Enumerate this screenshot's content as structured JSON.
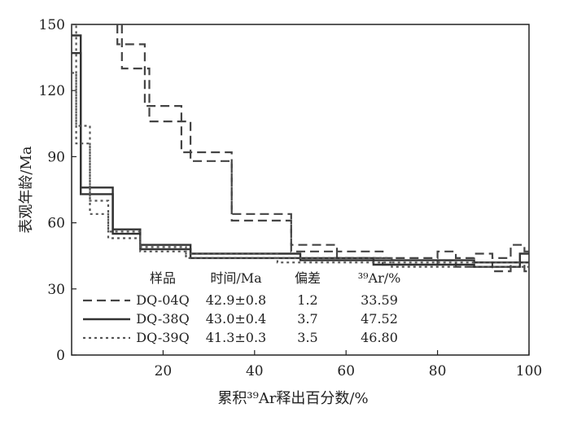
{
  "chart_data": {
    "type": "line",
    "title": "",
    "xlabel": "累积³⁹Ar释出百分数/%",
    "ylabel": "表观年龄/Ma",
    "xlim": [
      0,
      100
    ],
    "ylim": [
      0,
      150
    ],
    "x_ticks": [
      "20",
      "40",
      "60",
      "80",
      "100"
    ],
    "y_ticks": [
      "0",
      "30",
      "60",
      "90",
      "120",
      "150"
    ],
    "legend": {
      "placement": "bottom-left",
      "headers": [
        "样品",
        "时间/Ma",
        "偏差",
        "³⁹Ar/%"
      ],
      "rows": [
        {
          "sample": "DQ-04Q",
          "time": "42.9±0.8",
          "error": "1.2",
          "ar": "33.59"
        },
        {
          "sample": "DQ-38Q",
          "time": "43.0±0.4",
          "error": "3.7",
          "ar": "47.52"
        },
        {
          "sample": "DQ-39Q",
          "time": "41.3±0.3",
          "error": "3.5",
          "ar": "46.80"
        }
      ]
    },
    "series": [
      {
        "name": "DQ-04Q",
        "style": "dashed",
        "color": "#444444",
        "upper": [
          [
            10,
            150
          ],
          [
            10,
            141
          ],
          [
            16,
            141
          ],
          [
            16,
            113
          ],
          [
            24,
            113
          ],
          [
            24,
            92
          ],
          [
            35,
            92
          ],
          [
            35,
            64
          ],
          [
            48,
            64
          ],
          [
            48,
            50
          ],
          [
            58,
            50
          ],
          [
            58,
            47
          ],
          [
            68,
            47
          ],
          [
            68,
            44
          ],
          [
            80,
            44
          ],
          [
            80,
            47
          ],
          [
            84,
            47
          ],
          [
            84,
            44
          ],
          [
            88,
            44
          ],
          [
            88,
            46
          ],
          [
            92,
            46
          ],
          [
            92,
            44
          ],
          [
            96,
            44
          ],
          [
            96,
            50
          ],
          [
            99,
            50
          ],
          [
            99,
            47
          ],
          [
            100,
            47
          ]
        ],
        "lower": [
          [
            11,
            150
          ],
          [
            11,
            130
          ],
          [
            17,
            130
          ],
          [
            17,
            106
          ],
          [
            26,
            106
          ],
          [
            26,
            88
          ],
          [
            35,
            88
          ],
          [
            35,
            61
          ],
          [
            48,
            61
          ],
          [
            48,
            47
          ],
          [
            58,
            47
          ],
          [
            58,
            44
          ],
          [
            68,
            44
          ],
          [
            68,
            41
          ],
          [
            80,
            41
          ],
          [
            80,
            43
          ],
          [
            84,
            43
          ],
          [
            84,
            40
          ],
          [
            88,
            40
          ],
          [
            88,
            42
          ],
          [
            92,
            42
          ],
          [
            92,
            38
          ],
          [
            96,
            38
          ],
          [
            96,
            42
          ],
          [
            99,
            42
          ],
          [
            99,
            38
          ],
          [
            100,
            38
          ]
        ]
      },
      {
        "name": "DQ-38Q",
        "style": "solid",
        "color": "#333333",
        "upper": [
          [
            0,
            145
          ],
          [
            2,
            145
          ],
          [
            2,
            76
          ],
          [
            9,
            76
          ],
          [
            9,
            57
          ],
          [
            15,
            57
          ],
          [
            15,
            50
          ],
          [
            26,
            50
          ],
          [
            26,
            46
          ],
          [
            50,
            46
          ],
          [
            50,
            44
          ],
          [
            66,
            44
          ],
          [
            66,
            43
          ],
          [
            88,
            43
          ],
          [
            88,
            42
          ],
          [
            98,
            42
          ],
          [
            98,
            46
          ],
          [
            100,
            46
          ]
        ],
        "lower": [
          [
            0,
            137
          ],
          [
            2,
            137
          ],
          [
            2,
            73
          ],
          [
            9,
            73
          ],
          [
            9,
            55
          ],
          [
            15,
            55
          ],
          [
            15,
            48
          ],
          [
            26,
            48
          ],
          [
            26,
            44
          ],
          [
            50,
            44
          ],
          [
            50,
            43
          ],
          [
            66,
            43
          ],
          [
            66,
            41
          ],
          [
            88,
            41
          ],
          [
            88,
            40
          ],
          [
            98,
            40
          ],
          [
            98,
            42
          ],
          [
            100,
            42
          ]
        ]
      },
      {
        "name": "DQ-39Q",
        "style": "dotted",
        "color": "#555555",
        "upper": [
          [
            0,
            150
          ],
          [
            1,
            150
          ],
          [
            1,
            104
          ],
          [
            4,
            104
          ],
          [
            4,
            70
          ],
          [
            8,
            70
          ],
          [
            8,
            56
          ],
          [
            15,
            56
          ],
          [
            15,
            49
          ],
          [
            25,
            49
          ],
          [
            25,
            46
          ],
          [
            45,
            46
          ],
          [
            45,
            44
          ],
          [
            70,
            44
          ],
          [
            70,
            42
          ],
          [
            100,
            42
          ]
        ],
        "lower": [
          [
            0,
            128
          ],
          [
            1,
            128
          ],
          [
            1,
            96
          ],
          [
            4,
            96
          ],
          [
            4,
            64
          ],
          [
            8,
            64
          ],
          [
            8,
            53
          ],
          [
            15,
            53
          ],
          [
            15,
            47
          ],
          [
            25,
            47
          ],
          [
            25,
            44
          ],
          [
            45,
            44
          ],
          [
            45,
            42
          ],
          [
            70,
            42
          ],
          [
            70,
            40
          ],
          [
            100,
            40
          ]
        ]
      }
    ]
  }
}
